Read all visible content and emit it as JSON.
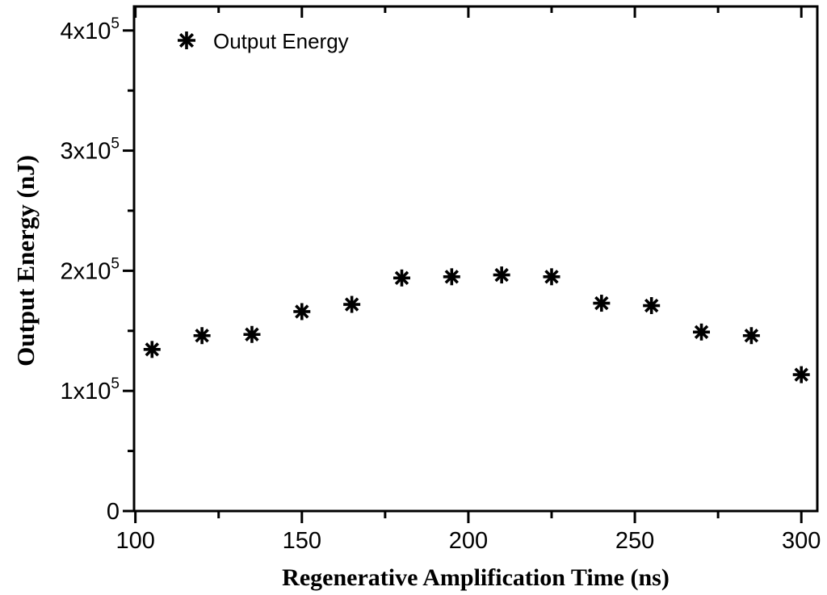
{
  "colors": {
    "foreground": "#000000",
    "background": "#ffffff"
  },
  "chart_data": {
    "type": "scatter",
    "title": "",
    "xlabel": "Regenerative Amplification Time (ns)",
    "ylabel": "Output Energy (nJ)",
    "legend": {
      "position": "top-left-inside",
      "entries": [
        {
          "label": "Output Energy",
          "marker": "asterisk-8-point"
        }
      ]
    },
    "series": [
      {
        "name": "Output Energy",
        "x": [
          105,
          120,
          135,
          150,
          165,
          180,
          195,
          210,
          225,
          240,
          255,
          270,
          285,
          300
        ],
        "y": [
          134500,
          146000,
          147000,
          166000,
          172000,
          194000,
          195000,
          196500,
          195000,
          173000,
          171000,
          149000,
          146000,
          113500
        ]
      }
    ],
    "xlim": [
      99.6,
      304.8
    ],
    "ylim": [
      0,
      420000
    ],
    "x_major_ticks": [
      100,
      150,
      200,
      250,
      300
    ],
    "x_minor_ticks": [
      125,
      175,
      225,
      275
    ],
    "y_major_ticks": [
      {
        "value": 0,
        "base": "0",
        "exp": ""
      },
      {
        "value": 100000,
        "base": "1x10",
        "exp": "5"
      },
      {
        "value": 200000,
        "base": "2x10",
        "exp": "5"
      },
      {
        "value": 300000,
        "base": "3x10",
        "exp": "5"
      },
      {
        "value": 400000,
        "base": "4x10",
        "exp": "5"
      }
    ],
    "y_minor_ticks": [
      50000,
      150000,
      250000,
      350000
    ],
    "grid": false,
    "marker_color": "#000000"
  }
}
